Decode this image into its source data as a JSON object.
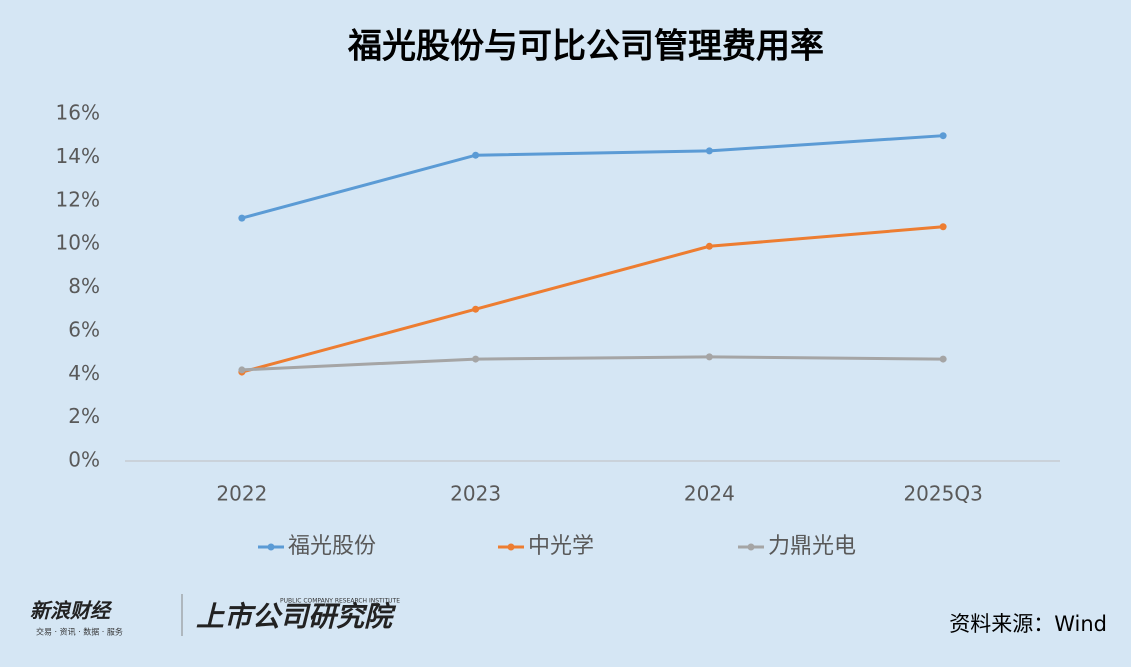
{
  "chart_data": {
    "type": "line",
    "title": "福光股份与可比公司管理费用率",
    "categories": [
      "2022",
      "2023",
      "2024",
      "2025Q3"
    ],
    "series": [
      {
        "name": "福光股份",
        "color": "#5b9bd5",
        "values": [
          11.2,
          14.1,
          14.3,
          15.0
        ]
      },
      {
        "name": "中光学",
        "color": "#ed7d31",
        "values": [
          4.1,
          7.0,
          9.9,
          10.8
        ]
      },
      {
        "name": "力鼎光电",
        "color": "#a5a5a5",
        "values": [
          4.2,
          4.7,
          4.8,
          4.7
        ]
      }
    ],
    "ylim": [
      0,
      16
    ],
    "yticks": [
      {
        "value": 0,
        "label": "0%"
      },
      {
        "value": 2,
        "label": "2%"
      },
      {
        "value": 4,
        "label": "4%"
      },
      {
        "value": 6,
        "label": "6%"
      },
      {
        "value": 8,
        "label": "8%"
      },
      {
        "value": 10,
        "label": "10%"
      },
      {
        "value": 12,
        "label": "12%"
      },
      {
        "value": 14,
        "label": "14%"
      },
      {
        "value": 16,
        "label": "16%"
      }
    ],
    "legend": "bottom"
  },
  "footer": {
    "brand": "新浪财经",
    "brand_sub": "交易 · 资讯 · 数据 · 服务",
    "institute": "上市公司研究院",
    "institute_en": "PUBLIC COMPANY RESEARCH INSTITUTE",
    "source": "资料来源：Wind"
  }
}
